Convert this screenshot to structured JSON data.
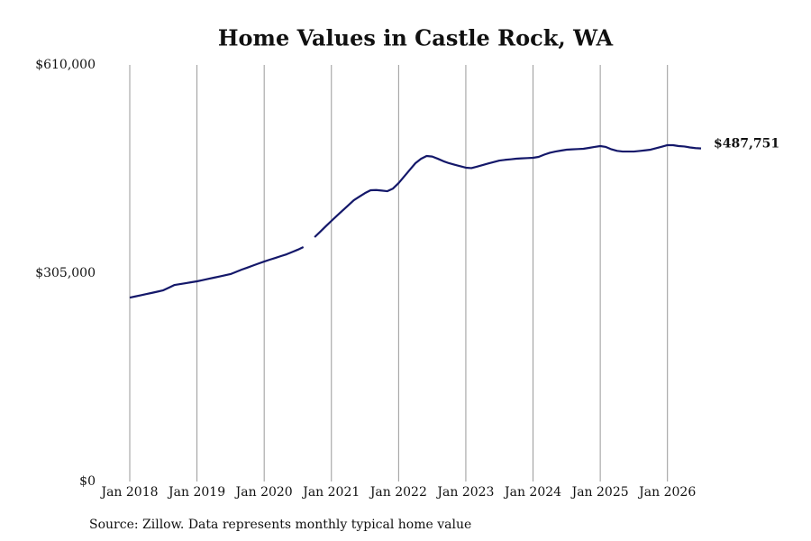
{
  "chart_data": {
    "type": "line",
    "title": "Home Values in Castle Rock, WA",
    "source": "Source: Zillow. Data represents monthly typical home value",
    "x": [
      "2018-01",
      "2018-02",
      "2018-03",
      "2018-04",
      "2018-05",
      "2018-06",
      "2018-07",
      "2018-08",
      "2018-09",
      "2018-10",
      "2018-11",
      "2018-12",
      "2019-01",
      "2019-02",
      "2019-03",
      "2019-04",
      "2019-05",
      "2019-06",
      "2019-07",
      "2019-08",
      "2019-09",
      "2019-10",
      "2019-11",
      "2019-12",
      "2020-01",
      "2020-02",
      "2020-03",
      "2020-04",
      "2020-05",
      "2020-06",
      "2020-07",
      "2020-08",
      "2020-09",
      "2020-10",
      "2020-11",
      "2020-12",
      "2021-01",
      "2021-02",
      "2021-03",
      "2021-04",
      "2021-05",
      "2021-06",
      "2021-07",
      "2021-08",
      "2021-09",
      "2021-10",
      "2021-11",
      "2021-12",
      "2022-01",
      "2022-02",
      "2022-03",
      "2022-04",
      "2022-05",
      "2022-06",
      "2022-07",
      "2022-08",
      "2022-09",
      "2022-10",
      "2022-11",
      "2022-12",
      "2023-01",
      "2023-02",
      "2023-03",
      "2023-04",
      "2023-05",
      "2023-06",
      "2023-07",
      "2023-08",
      "2023-09",
      "2023-10",
      "2023-11",
      "2023-12",
      "2024-01",
      "2024-02",
      "2024-03",
      "2024-04",
      "2024-05",
      "2024-06",
      "2024-07",
      "2024-08",
      "2024-09",
      "2024-10",
      "2024-11",
      "2024-12",
      "2025-01",
      "2025-02",
      "2025-03",
      "2025-04",
      "2025-05",
      "2025-06",
      "2025-07",
      "2025-08",
      "2025-09",
      "2025-10",
      "2025-11",
      "2025-12",
      "2026-01",
      "2026-02",
      "2026-03",
      "2026-04",
      "2026-05",
      "2026-06",
      "2026-07"
    ],
    "series": [
      {
        "color": "#14186a",
        "values": [
          269300,
          271000,
          272800,
          274500,
          276300,
          278100,
          280000,
          283900,
          287800,
          289100,
          290400,
          291800,
          293100,
          294900,
          296700,
          298400,
          300200,
          302000,
          303700,
          307000,
          310300,
          313200,
          316200,
          319200,
          322100,
          324800,
          327400,
          330100,
          332700,
          336000,
          339400,
          343300,
          null,
          357800,
          365700,
          373700,
          381600,
          389200,
          396800,
          404300,
          411900,
          417200,
          422300,
          426500,
          426800,
          426000,
          425100,
          429000,
          437000,
          446700,
          456400,
          466100,
          472500,
          476600,
          475800,
          472600,
          469000,
          466100,
          463900,
          461700,
          459500,
          458900,
          461100,
          463400,
          465600,
          467800,
          470000,
          471000,
          471800,
          472700,
          473200,
          473600,
          474000,
          475300,
          478600,
          481400,
          483200,
          484600,
          485900,
          486400,
          486800,
          487200,
          488500,
          489900,
          491200,
          489900,
          486400,
          484200,
          483200,
          483200,
          483200,
          484000,
          484900,
          485900,
          488100,
          490300,
          492500,
          492500,
          491200,
          490600,
          489200,
          488200,
          487751
        ],
        "value_labels": [
          null,
          null,
          null,
          null,
          null,
          null,
          null,
          null,
          null,
          null,
          null,
          null,
          null,
          null,
          null,
          null,
          null,
          null,
          null,
          null,
          null,
          null,
          null,
          null,
          null,
          null,
          null,
          null,
          null,
          null,
          null,
          null,
          null,
          null,
          null,
          null,
          null,
          null,
          null,
          null,
          null,
          null,
          null,
          null,
          null,
          null,
          null,
          null,
          null,
          null,
          null,
          null,
          null,
          null,
          null,
          null,
          null,
          null,
          null,
          null,
          null,
          null,
          null,
          null,
          null,
          null,
          null,
          null,
          null,
          null,
          null,
          null,
          null,
          null,
          null,
          null,
          null,
          null,
          null,
          null,
          null,
          null,
          null,
          null,
          null,
          null,
          null,
          null,
          null,
          null,
          null,
          null,
          null,
          null,
          null,
          null,
          null,
          null,
          null,
          null,
          null,
          null,
          "$487,751"
        ]
      }
    ],
    "xlim": [
      "2018-01",
      "2026-07"
    ],
    "xticks": [
      {
        "value": "2018-01",
        "label": "Jan 2018"
      },
      {
        "value": "2019-01",
        "label": "Jan 2019"
      },
      {
        "value": "2020-01",
        "label": "Jan 2020"
      },
      {
        "value": "2021-01",
        "label": "Jan 2021"
      },
      {
        "value": "2022-01",
        "label": "Jan 2022"
      },
      {
        "value": "2023-01",
        "label": "Jan 2023"
      },
      {
        "value": "2024-01",
        "label": "Jan 2024"
      },
      {
        "value": "2025-01",
        "label": "Jan 2025"
      },
      {
        "value": "2026-01",
        "label": "Jan 2026"
      }
    ],
    "ylim": [
      0,
      610000
    ],
    "yticks": [
      {
        "value": 0,
        "label": "$0"
      },
      {
        "value": 305000,
        "label": "$305,000"
      },
      {
        "value": 610000,
        "label": "$610,000"
      }
    ],
    "grid": "x"
  }
}
